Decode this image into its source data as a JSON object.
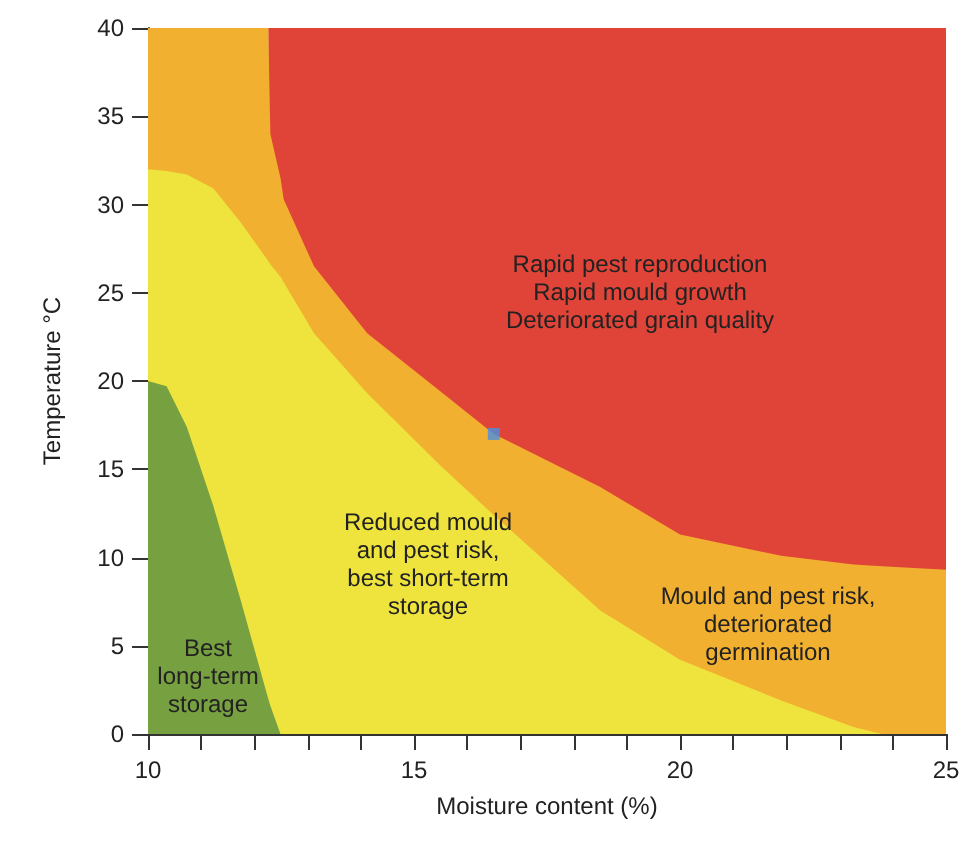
{
  "chart_data": {
    "type": "area",
    "stacked": true,
    "xlabel": "Moisture content (%)",
    "ylabel": "Temperature °C",
    "xlim": [
      10,
      25
    ],
    "ylim": [
      0,
      40
    ],
    "xticks": [
      10,
      {
        "value": 11,
        "label": null
      },
      {
        "value": 12,
        "label": null
      },
      {
        "value": 13,
        "label": null
      },
      {
        "value": 14,
        "label": null
      },
      15,
      {
        "value": 16,
        "label": null
      },
      {
        "value": 17,
        "label": null
      },
      {
        "value": 18,
        "label": null
      },
      {
        "value": 19,
        "label": null
      },
      20,
      {
        "value": 21,
        "label": null
      },
      {
        "value": 22,
        "label": null
      },
      {
        "value": 23,
        "label": null
      },
      {
        "value": 24,
        "label": null
      },
      25
    ],
    "yticks": [
      0,
      5,
      10,
      15,
      20,
      25,
      30,
      35,
      40
    ],
    "grid": false,
    "marker": "none",
    "x": [
      10,
      10.35,
      10.73,
      11.23,
      11.74,
      12.26,
      12.3,
      12.49,
      12.55,
      13.12,
      14.12,
      15.5,
      16.5,
      18.5,
      20,
      21.9,
      23.26,
      23.8,
      25
    ],
    "series": [
      {
        "color": "#77a040",
        "values": [
          20,
          19.7,
          17.4,
          12.9,
          7.6,
          2.0,
          1.6,
          0,
          0,
          0,
          0,
          0,
          0,
          0,
          0,
          0,
          0,
          0,
          0
        ]
      },
      {
        "color": "#efe43e",
        "values": [
          12,
          12.2,
          14.3,
          18.0,
          21.4,
          24.8,
          25.0,
          25.9,
          25.6,
          22.7,
          19.3,
          15.2,
          12.4,
          7.0,
          4.2,
          1.9,
          0.4,
          0,
          0
        ]
      },
      {
        "color": "#f2b030",
        "values": [
          8,
          8.1,
          8.3,
          9.1,
          11.0,
          13.2,
          7.4,
          5.6,
          4.7,
          3.8,
          3.4,
          4.2,
          4.6,
          7.0,
          7.1,
          8.2,
          9.2,
          9.5,
          9.3
        ]
      },
      {
        "color": "#e04438",
        "values": [
          null,
          null,
          null,
          null,
          null,
          0,
          6,
          8.5,
          9.7,
          13.5,
          17.3,
          20.6,
          23,
          26,
          28.7,
          29.9,
          30.4,
          30.5,
          30.7
        ]
      },
      {
        "type": "scatter",
        "marker": "square",
        "color": "#4a90e2",
        "x": [
          16.5
        ],
        "values": [
          17
        ]
      }
    ],
    "annotations": [
      "Rapid pest reproduction\nRapid mould growth\nDeteriorated grain quality",
      "Reduced mould\nand pest risk,\nbest short-term\nstorage",
      "Mould and pest risk,\ndeteriorated\ngermination",
      "Best\nlong-term\nstorage"
    ]
  }
}
